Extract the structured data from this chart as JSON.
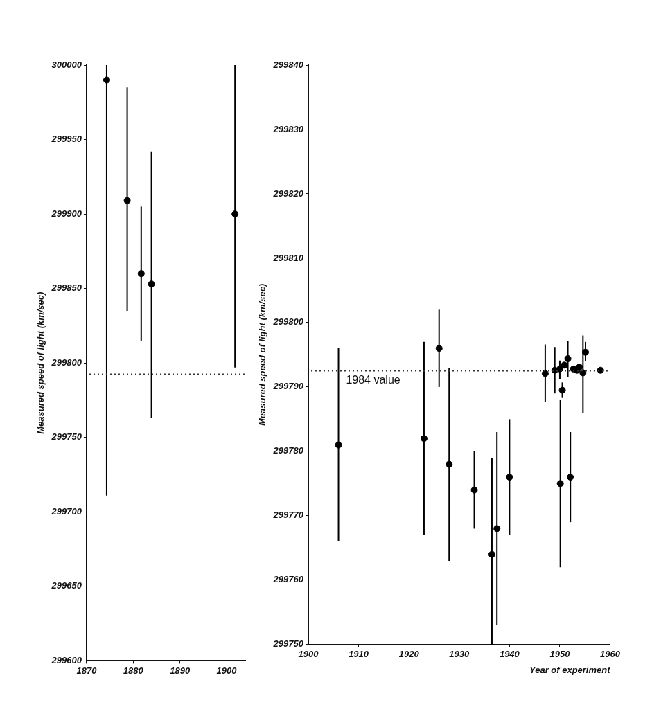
{
  "chart_data": [
    {
      "type": "scatter",
      "ylabel": "Measured speed of light (km/sec)",
      "x": [
        1874.3,
        1878.7,
        1881.7,
        1883.9,
        1901.8
      ],
      "values": [
        299990,
        299909,
        299860,
        299853,
        299900
      ],
      "errors": [
        [
          299711,
          300000
        ],
        [
          299835,
          299985
        ],
        [
          299815,
          299905
        ],
        [
          299763,
          299942
        ],
        [
          299797,
          300000
        ]
      ],
      "color": "#000000",
      "marker": "circle",
      "xlim": [
        1870,
        1904
      ],
      "xticks": [
        1870,
        1880,
        1890,
        1900
      ],
      "ylim": [
        299600,
        300000
      ],
      "yticks": [
        299600,
        299650,
        299700,
        299750,
        299800,
        299850,
        299900,
        299950,
        300000
      ],
      "ref_lines": [
        {
          "axis": "y",
          "value": 299792.5,
          "line_style": "dotted"
        }
      ]
    },
    {
      "type": "scatter",
      "ylabel": "Measured speed of light (km/sec)",
      "xlabel": "Year of experiment",
      "x": [
        1906.0,
        1923.0,
        1926.0,
        1928.0,
        1933.0,
        1936.5,
        1937.5,
        1940.0,
        1947.1,
        1949.0,
        1950.0,
        1950.9,
        1951.6,
        1950.5,
        1950.1,
        1952.1,
        1952.7,
        1953.4,
        1953.9,
        1954.6,
        1955.1,
        1958.1
      ],
      "values": [
        299781,
        299782,
        299796,
        299778,
        299774,
        299764,
        299768,
        299776,
        299792.1,
        299792.6,
        299792.8,
        299793.4,
        299794.4,
        299789.5,
        299775,
        299776,
        299792.8,
        299792.6,
        299793.1,
        299792.2,
        299795.4,
        299792.6
      ],
      "errors": [
        [
          299766,
          299796
        ],
        [
          299767,
          299797
        ],
        [
          299790,
          299802
        ],
        [
          299763,
          299793
        ],
        [
          299768,
          299780
        ],
        [
          299750,
          299779
        ],
        [
          299753,
          299783
        ],
        [
          299767,
          299785
        ],
        [
          299787.7,
          299796.6
        ],
        [
          299789,
          299796.2
        ],
        [
          299791.2,
          299794.1
        ],
        null,
        [
          299791.5,
          299797.1
        ],
        [
          299788.3,
          299790.7
        ],
        [
          299762,
          299788
        ],
        [
          299769,
          299783
        ],
        null,
        null,
        null,
        [
          299786,
          299798
        ],
        [
          299794,
          299797
        ],
        null
      ],
      "color": "#000000",
      "marker": "circle",
      "xlim": [
        1900,
        1960
      ],
      "xticks": [
        1900,
        1910,
        1920,
        1930,
        1940,
        1950,
        1960
      ],
      "ylim": [
        299750,
        299840
      ],
      "yticks": [
        299750,
        299760,
        299770,
        299780,
        299790,
        299800,
        299810,
        299820,
        299830,
        299840
      ],
      "ref_lines": [
        {
          "axis": "y",
          "value": 299792.5,
          "label": "1984 value",
          "line_style": "dotted"
        }
      ]
    }
  ]
}
